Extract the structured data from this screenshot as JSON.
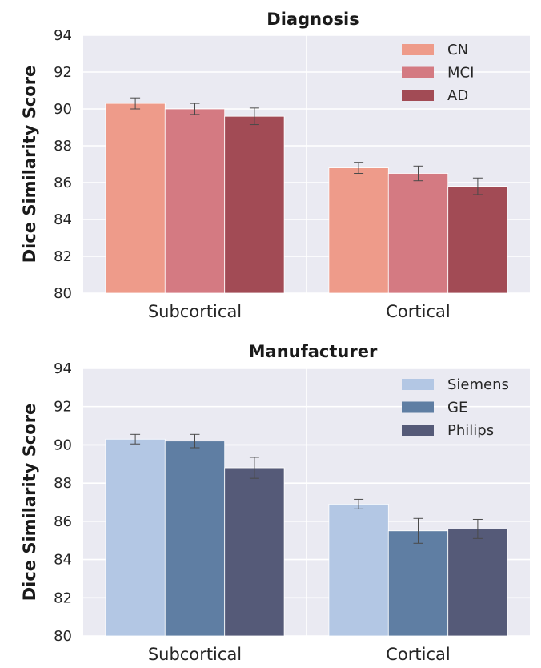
{
  "chart_data": [
    {
      "type": "bar",
      "title": "Diagnosis",
      "xlabel": "",
      "ylabel": "Dice Similarity Score",
      "ylim": [
        80,
        94
      ],
      "yticks": [
        "80",
        "82",
        "84",
        "86",
        "88",
        "90",
        "92",
        "94"
      ],
      "categories": [
        "Subcortical",
        "Cortical"
      ],
      "grid": true,
      "legend_position": "top-right",
      "series": [
        {
          "name": "CN",
          "color": "#ee9b8a",
          "values": [
            90.3,
            86.8
          ],
          "errors": [
            0.3,
            0.3
          ]
        },
        {
          "name": "MCI",
          "color": "#d47a82",
          "values": [
            90.0,
            86.5
          ],
          "errors": [
            0.3,
            0.4
          ]
        },
        {
          "name": "AD",
          "color": "#a24b55",
          "values": [
            89.6,
            85.8
          ],
          "errors": [
            0.45,
            0.45
          ]
        }
      ]
    },
    {
      "type": "bar",
      "title": "Manufacturer",
      "xlabel": "",
      "ylabel": "Dice Similarity Score",
      "ylim": [
        80,
        94
      ],
      "yticks": [
        "80",
        "82",
        "84",
        "86",
        "88",
        "90",
        "92",
        "94"
      ],
      "categories": [
        "Subcortical",
        "Cortical"
      ],
      "grid": true,
      "legend_position": "top-right",
      "series": [
        {
          "name": "Siemens",
          "color": "#b3c7e4",
          "values": [
            90.3,
            86.9
          ],
          "errors": [
            0.25,
            0.25
          ]
        },
        {
          "name": "GE",
          "color": "#5f7ea3",
          "values": [
            90.2,
            85.5
          ],
          "errors": [
            0.35,
            0.65
          ]
        },
        {
          "name": "Philips",
          "color": "#555a78",
          "values": [
            88.8,
            85.6
          ],
          "errors": [
            0.55,
            0.5
          ]
        }
      ]
    }
  ]
}
